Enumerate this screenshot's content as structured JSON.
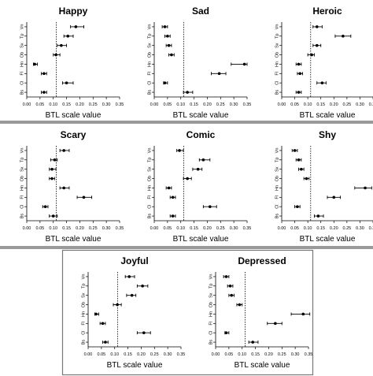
{
  "chart_data": [
    {
      "type": "scatter",
      "title": "Happy",
      "xlabel": "BTL scale value",
      "xlim": [
        0,
        0.35
      ],
      "xticks": [
        "0.00",
        "0.05",
        "0.10",
        "0.15",
        "0.20",
        "0.25",
        "0.30",
        "0.35"
      ],
      "reference_line": 0.111,
      "categories": [
        "Vn",
        "Tp",
        "Sx",
        "Ob",
        "Hn",
        "Fl",
        "Cl",
        "Bs"
      ],
      "estimates": [
        0.185,
        0.155,
        0.13,
        0.11,
        0.03,
        0.065,
        0.15,
        0.065
      ],
      "lower": [
        0.165,
        0.14,
        0.115,
        0.1,
        0.025,
        0.055,
        0.135,
        0.055
      ],
      "upper": [
        0.215,
        0.175,
        0.15,
        0.125,
        0.04,
        0.075,
        0.175,
        0.075
      ]
    },
    {
      "type": "scatter",
      "title": "Sad",
      "xlabel": "BTL scale value",
      "xlim": [
        0,
        0.35
      ],
      "xticks": [
        "0.00",
        "0.05",
        "0.10",
        "0.15",
        "0.20",
        "0.25",
        "0.30",
        "0.35"
      ],
      "reference_line": 0.111,
      "categories": [
        "Vn",
        "Tp",
        "Sx",
        "Ob",
        "Hn",
        "Fl",
        "Cl",
        "Bs"
      ],
      "estimates": [
        0.04,
        0.05,
        0.055,
        0.065,
        0.34,
        0.245,
        0.04,
        0.125
      ],
      "lower": [
        0.03,
        0.04,
        0.045,
        0.055,
        0.29,
        0.215,
        0.035,
        0.11
      ],
      "upper": [
        0.05,
        0.06,
        0.065,
        0.075,
        0.35,
        0.27,
        0.05,
        0.145
      ]
    },
    {
      "type": "scatter",
      "title": "Heroic",
      "xlabel": "BTL scale value",
      "xlim": [
        0,
        0.35
      ],
      "xticks": [
        "0.00",
        "0.05",
        "0.10",
        "0.15",
        "0.20",
        "0.25",
        "0.30",
        "0.35"
      ],
      "reference_line": 0.111,
      "categories": [
        "Vn",
        "Tp",
        "Sx",
        "Ob",
        "Hn",
        "Fl",
        "Cl",
        "Bs"
      ],
      "estimates": [
        0.135,
        0.235,
        0.135,
        0.115,
        0.065,
        0.07,
        0.155,
        0.065
      ],
      "lower": [
        0.12,
        0.205,
        0.12,
        0.1,
        0.055,
        0.06,
        0.135,
        0.055
      ],
      "upper": [
        0.155,
        0.265,
        0.15,
        0.125,
        0.075,
        0.08,
        0.17,
        0.075
      ]
    },
    {
      "type": "scatter",
      "title": "Scary",
      "xlabel": "BTL scale value",
      "xlim": [
        0,
        0.35
      ],
      "xticks": [
        "0.00",
        "0.05",
        "0.10",
        "0.15",
        "0.20",
        "0.25",
        "0.30",
        "0.35"
      ],
      "reference_line": 0.111,
      "categories": [
        "Vn",
        "Tp",
        "Sx",
        "Ob",
        "Hn",
        "Fl",
        "Cl",
        "Bs"
      ],
      "estimates": [
        0.14,
        0.105,
        0.095,
        0.095,
        0.14,
        0.215,
        0.07,
        0.1
      ],
      "lower": [
        0.125,
        0.09,
        0.085,
        0.085,
        0.125,
        0.19,
        0.06,
        0.085
      ],
      "upper": [
        0.16,
        0.115,
        0.11,
        0.105,
        0.16,
        0.245,
        0.08,
        0.115
      ]
    },
    {
      "type": "scatter",
      "title": "Comic",
      "xlabel": "BTL scale value",
      "xlim": [
        0,
        0.35
      ],
      "xticks": [
        "0.00",
        "0.05",
        "0.10",
        "0.15",
        "0.20",
        "0.25",
        "0.30",
        "0.35"
      ],
      "reference_line": 0.111,
      "categories": [
        "Vn",
        "Tp",
        "Sx",
        "Ob",
        "Hn",
        "Fl",
        "Cl",
        "Bs"
      ],
      "estimates": [
        0.095,
        0.185,
        0.165,
        0.125,
        0.055,
        0.07,
        0.21,
        0.07
      ],
      "lower": [
        0.085,
        0.17,
        0.145,
        0.11,
        0.045,
        0.06,
        0.185,
        0.06
      ],
      "upper": [
        0.11,
        0.21,
        0.18,
        0.14,
        0.065,
        0.08,
        0.235,
        0.08
      ]
    },
    {
      "type": "scatter",
      "title": "Shy",
      "xlabel": "BTL scale value",
      "xlim": [
        0,
        0.35
      ],
      "xticks": [
        "0.00",
        "0.05",
        "0.10",
        "0.15",
        "0.20",
        "0.25",
        "0.30",
        "0.35"
      ],
      "reference_line": 0.111,
      "categories": [
        "Vn",
        "Tp",
        "Sx",
        "Ob",
        "Hn",
        "Fl",
        "Cl",
        "Bs"
      ],
      "estimates": [
        0.05,
        0.065,
        0.075,
        0.095,
        0.32,
        0.2,
        0.06,
        0.14
      ],
      "lower": [
        0.04,
        0.055,
        0.065,
        0.085,
        0.28,
        0.175,
        0.05,
        0.125
      ],
      "upper": [
        0.06,
        0.075,
        0.085,
        0.105,
        0.345,
        0.225,
        0.07,
        0.16
      ]
    },
    {
      "type": "scatter",
      "title": "Joyful",
      "xlabel": "BTL scale value",
      "xlim": [
        0,
        0.35
      ],
      "xticks": [
        "0.00",
        "0.05",
        "0.10",
        "0.15",
        "0.20",
        "0.25",
        "0.30",
        "0.35"
      ],
      "reference_line": 0.111,
      "categories": [
        "Vn",
        "Tp",
        "Sx",
        "Ob",
        "Hn",
        "Fl",
        "Cl",
        "Bs"
      ],
      "estimates": [
        0.155,
        0.205,
        0.165,
        0.11,
        0.03,
        0.055,
        0.21,
        0.065
      ],
      "lower": [
        0.14,
        0.185,
        0.145,
        0.095,
        0.025,
        0.045,
        0.185,
        0.055
      ],
      "upper": [
        0.175,
        0.225,
        0.18,
        0.125,
        0.04,
        0.065,
        0.235,
        0.075
      ]
    },
    {
      "type": "scatter",
      "title": "Depressed",
      "xlabel": "BTL scale value",
      "xlim": [
        0,
        0.35
      ],
      "xticks": [
        "0.00",
        "0.05",
        "0.10",
        "0.15",
        "0.20",
        "0.25",
        "0.30",
        "0.35"
      ],
      "reference_line": 0.111,
      "categories": [
        "Vn",
        "Tp",
        "Sx",
        "Ob",
        "Hn",
        "Fl",
        "Cl",
        "Bs"
      ],
      "estimates": [
        0.04,
        0.055,
        0.06,
        0.09,
        0.33,
        0.225,
        0.04,
        0.14
      ],
      "lower": [
        0.03,
        0.045,
        0.05,
        0.08,
        0.285,
        0.195,
        0.035,
        0.125
      ],
      "upper": [
        0.05,
        0.065,
        0.07,
        0.1,
        0.355,
        0.25,
        0.05,
        0.16
      ]
    }
  ]
}
